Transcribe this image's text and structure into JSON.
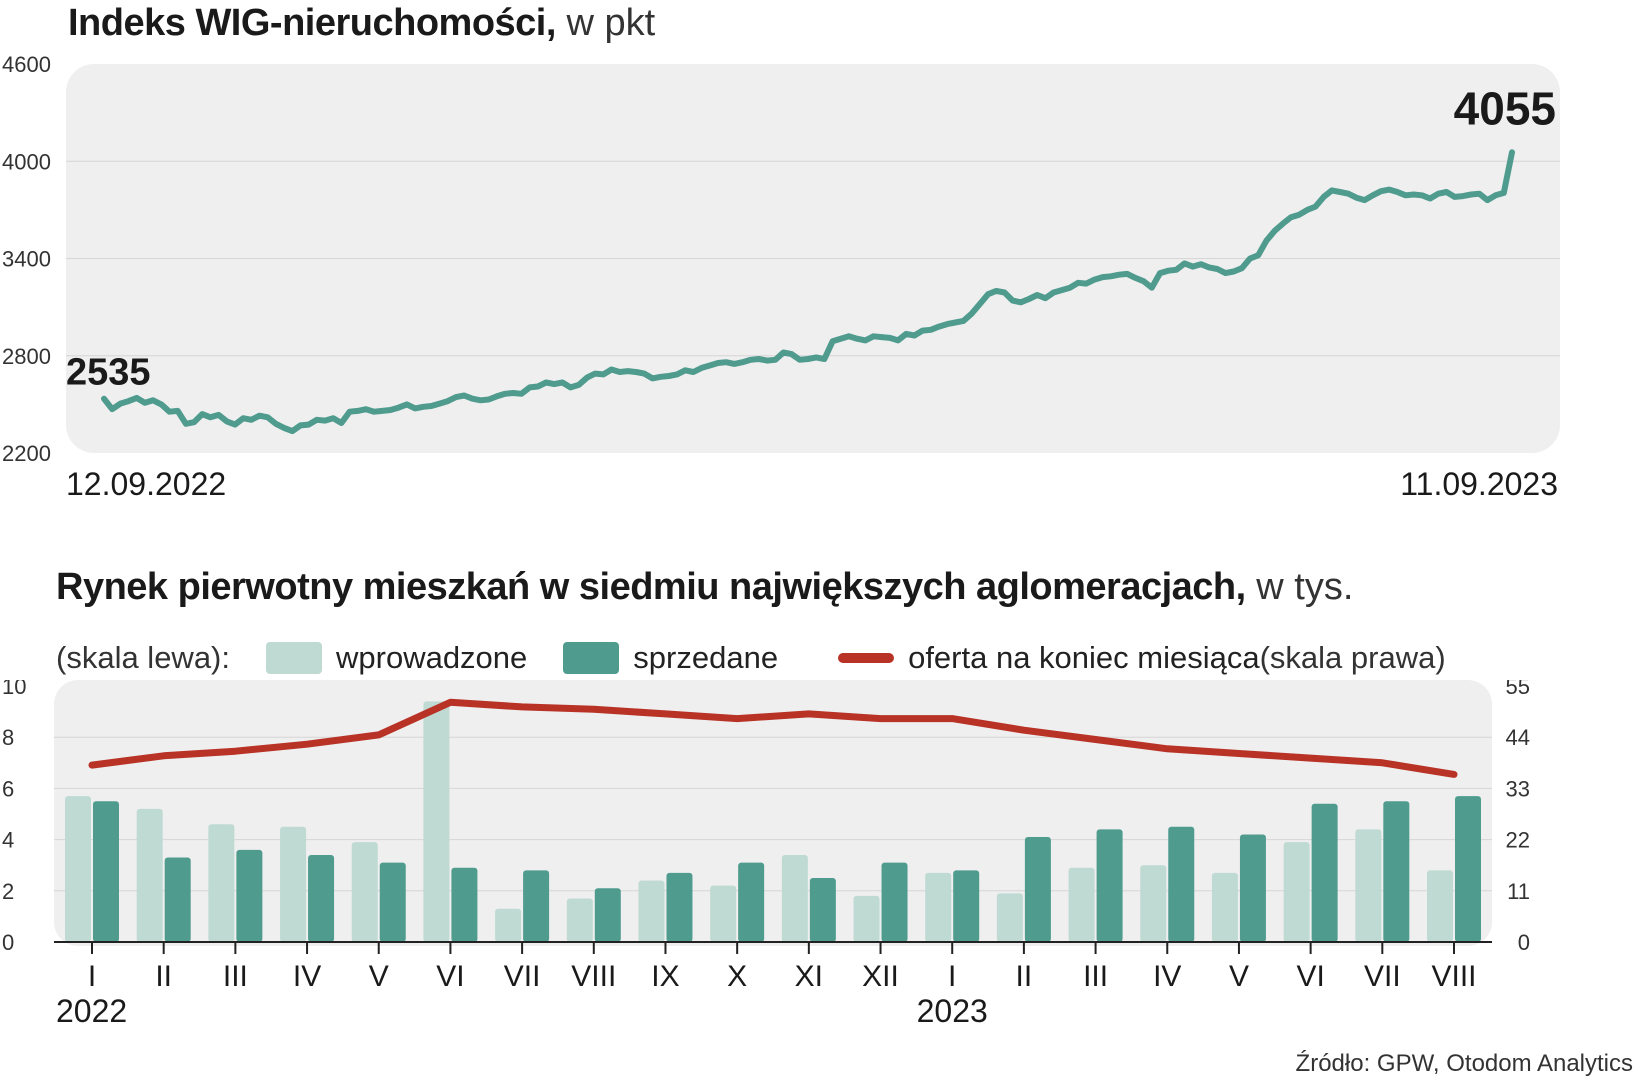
{
  "colors": {
    "line": "#4f9b8e",
    "introduced": "#bfdad3",
    "sold": "#4f9b8e",
    "offer": "#b83226",
    "panel": "#efefef"
  },
  "top": {
    "title_bold": "Indeks WIG-nieruchomości,",
    "title_unit": " w pkt",
    "start_label": "2535",
    "end_label": "4055",
    "start_date": "12.09.2022",
    "end_date": "11.09.2023"
  },
  "bottom": {
    "title_bold": "Rynek pierwotny mieszkań w siedmiu największych aglomeracjach,",
    "title_unit": " w tys.",
    "legend_prefix": "(skala lewa):",
    "legend_introduced": "wprowadzone",
    "legend_sold": "sprzedane",
    "legend_offer": "oferta na koniec miesiąca",
    "legend_offer_suffix": " (skala prawa)",
    "year1": "2022",
    "year2": "2023"
  },
  "source": "Źródło: GPW, Otodom Analytics",
  "chart_data": [
    {
      "type": "line",
      "title": "Indeks WIG-nieruchomości, w pkt",
      "ylim": [
        2200,
        4600
      ],
      "yticks": [
        2200,
        2800,
        3400,
        4000,
        4600
      ],
      "x_start": "12.09.2022",
      "x_end": "11.09.2023",
      "grid": true,
      "series": [
        {
          "values": [
            2535,
            2470,
            2505,
            2520,
            2540,
            2510,
            2525,
            2500,
            2455,
            2460,
            2380,
            2390,
            2440,
            2420,
            2435,
            2395,
            2375,
            2415,
            2405,
            2430,
            2420,
            2380,
            2355,
            2335,
            2370,
            2375,
            2405,
            2400,
            2415,
            2385,
            2455,
            2460,
            2470,
            2455,
            2460,
            2465,
            2480,
            2500,
            2475,
            2485,
            2490,
            2505,
            2520,
            2545,
            2555,
            2535,
            2525,
            2530,
            2550,
            2565,
            2570,
            2565,
            2605,
            2610,
            2635,
            2625,
            2635,
            2605,
            2620,
            2665,
            2690,
            2685,
            2715,
            2700,
            2705,
            2700,
            2690,
            2660,
            2670,
            2675,
            2685,
            2710,
            2700,
            2725,
            2740,
            2755,
            2760,
            2750,
            2760,
            2775,
            2780,
            2770,
            2775,
            2820,
            2810,
            2775,
            2780,
            2790,
            2780,
            2890,
            2905,
            2920,
            2905,
            2895,
            2920,
            2915,
            2910,
            2895,
            2935,
            2925,
            2955,
            2960,
            2980,
            2995,
            3005,
            3015,
            3060,
            3120,
            3180,
            3200,
            3190,
            3140,
            3130,
            3150,
            3175,
            3155,
            3190,
            3205,
            3220,
            3250,
            3245,
            3270,
            3285,
            3290,
            3300,
            3305,
            3280,
            3260,
            3220,
            3310,
            3325,
            3330,
            3370,
            3350,
            3365,
            3345,
            3335,
            3310,
            3320,
            3340,
            3400,
            3420,
            3510,
            3570,
            3615,
            3655,
            3670,
            3700,
            3720,
            3780,
            3820,
            3810,
            3800,
            3775,
            3760,
            3790,
            3815,
            3825,
            3810,
            3790,
            3795,
            3790,
            3770,
            3800,
            3810,
            3780,
            3785,
            3795,
            3800,
            3760,
            3790,
            3805,
            4055
          ]
        }
      ]
    },
    {
      "type": "bar",
      "title": "Rynek pierwotny mieszkań w siedmiu największych aglomeracjach, w tys.",
      "categories": [
        "I",
        "II",
        "III",
        "IV",
        "V",
        "VI",
        "VII",
        "VIII",
        "IX",
        "X",
        "XI",
        "XII",
        "I",
        "II",
        "III",
        "IV",
        "V",
        "VI",
        "VII",
        "VIII"
      ],
      "years": [
        "2022",
        "2023"
      ],
      "ylim": [
        0,
        10
      ],
      "yticks": [
        0,
        2,
        4,
        6,
        8,
        10
      ],
      "y2lim": [
        0,
        55
      ],
      "y2ticks": [
        0,
        11,
        22,
        33,
        44,
        55
      ],
      "series": [
        {
          "name": "wprowadzone",
          "axis": "left",
          "values": [
            5.7,
            5.2,
            4.6,
            4.5,
            3.9,
            9.4,
            1.3,
            1.7,
            2.4,
            2.2,
            3.4,
            1.8,
            2.7,
            1.9,
            2.9,
            3.0,
            2.7,
            3.9,
            4.4,
            2.8
          ]
        },
        {
          "name": "sprzedane",
          "axis": "left",
          "values": [
            5.5,
            3.3,
            3.6,
            3.4,
            3.1,
            2.9,
            2.8,
            2.1,
            2.7,
            3.1,
            2.5,
            3.1,
            2.8,
            4.1,
            4.4,
            4.5,
            4.2,
            5.4,
            5.5,
            5.7
          ]
        },
        {
          "name": "oferta na koniec miesiąca",
          "axis": "right",
          "type": "line",
          "values": [
            38,
            40,
            41,
            42.5,
            44.5,
            51.5,
            50.5,
            50,
            49,
            48,
            49,
            48,
            48,
            45.5,
            43.5,
            41.5,
            40.5,
            39.5,
            38.5,
            36
          ]
        }
      ]
    }
  ]
}
